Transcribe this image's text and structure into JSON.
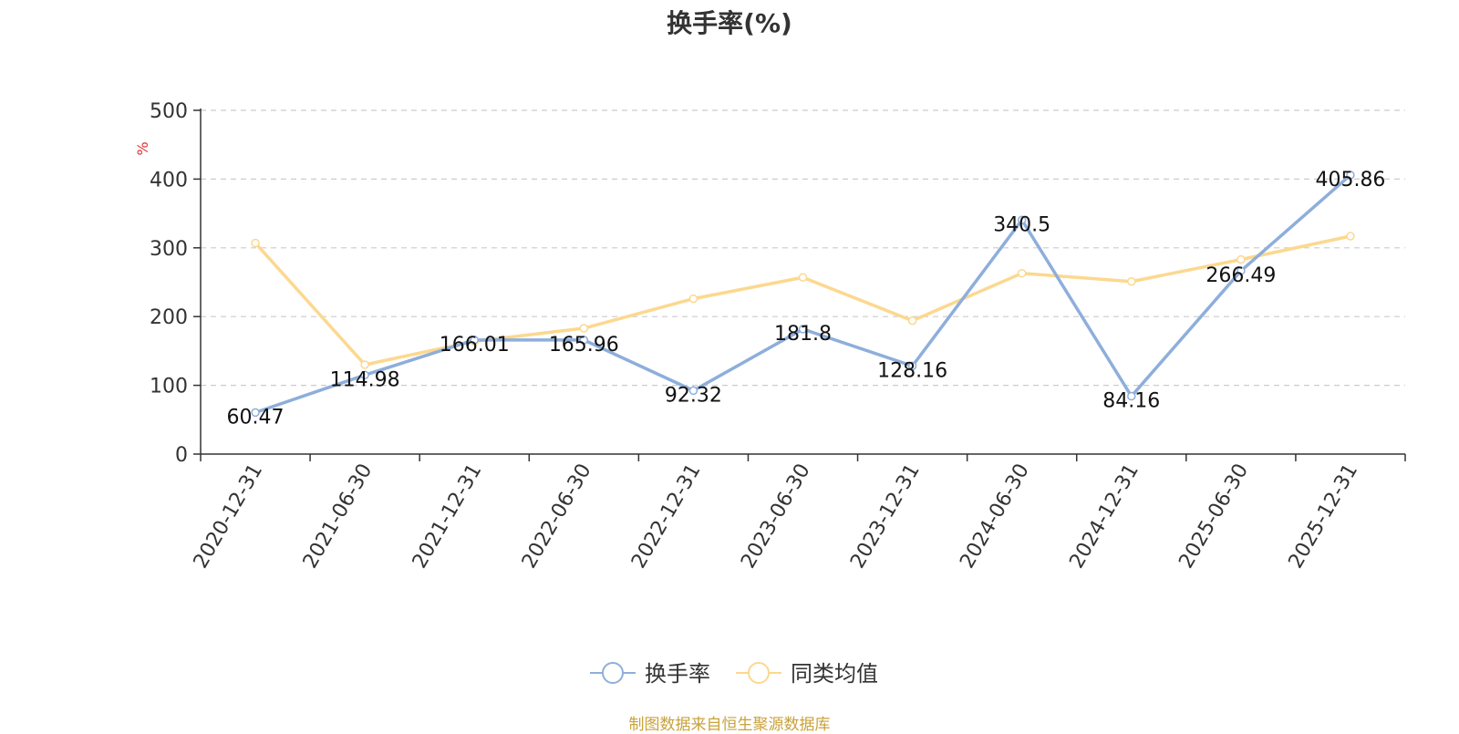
{
  "chart_data": {
    "type": "line",
    "title": "换手率(%)",
    "ylabel": "%",
    "xlabel": "",
    "categories": [
      "2020-12-31",
      "2021-06-30",
      "2021-12-31",
      "2022-06-30",
      "2022-12-31",
      "2023-06-30",
      "2023-12-31",
      "2024-06-30",
      "2024-12-31",
      "2025-06-30",
      "2025-12-31"
    ],
    "series": [
      {
        "name": "换手率",
        "color": "#8eaedb",
        "show_labels": true,
        "values": [
          60.47,
          114.98,
          166.01,
          165.96,
          92.32,
          181.8,
          128.16,
          340.5,
          84.16,
          266.49,
          405.86
        ],
        "labels": [
          "60.47",
          "114.98",
          "166.01",
          "165.96",
          "92.32",
          "181.8",
          "128.16",
          "340.5",
          "84.16",
          "266.49",
          "405.86"
        ]
      },
      {
        "name": "同类均值",
        "color": "#fcd88f",
        "show_labels": false,
        "values": [
          307,
          130,
          164,
          183,
          226,
          257,
          194,
          263,
          251,
          283,
          317
        ]
      }
    ],
    "ylim": [
      0,
      500
    ],
    "yticks": [
      0,
      100,
      200,
      300,
      400,
      500
    ],
    "grid": true,
    "legend_position": "bottom"
  },
  "footer": {
    "source": "制图数据来自恒生聚源数据库"
  }
}
